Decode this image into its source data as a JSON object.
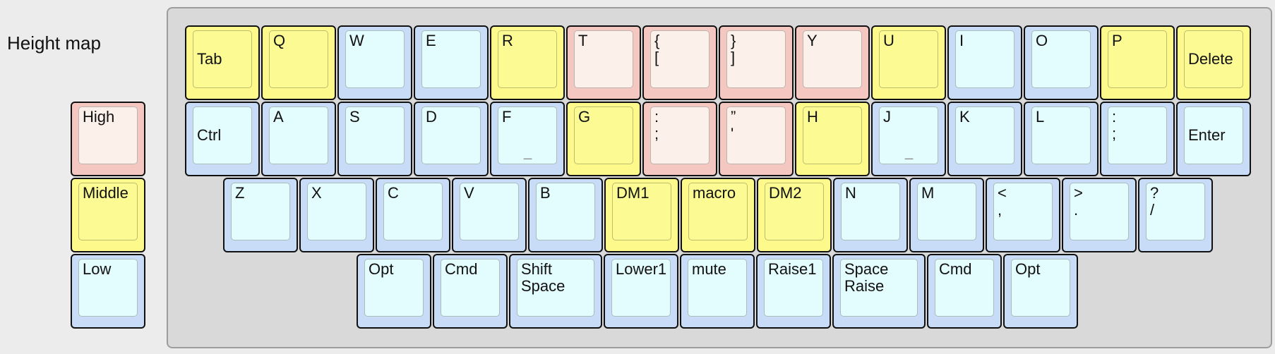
{
  "title": "Height map",
  "colors": {
    "high_outer": "#f4c7c0",
    "high_inner": "#fbf1ea",
    "middle_outer": "#fdfa8b",
    "middle_inner": "#fcfa93",
    "low_outer": "#c8dcf8",
    "low_inner": "#e3fcfd",
    "board": "#d9d9d9"
  },
  "legend": [
    {
      "label": "High",
      "level": "high"
    },
    {
      "label": "Middle",
      "level": "middle"
    },
    {
      "label": "Low",
      "level": "low"
    }
  ],
  "rows": [
    [
      {
        "label": "Tab",
        "level": "middle",
        "v": "mid"
      },
      {
        "label": "Q",
        "level": "middle"
      },
      {
        "label": "W",
        "level": "low"
      },
      {
        "label": "E",
        "level": "low"
      },
      {
        "label": "R",
        "level": "middle"
      },
      {
        "label": "T",
        "level": "high"
      },
      {
        "label": "{\n[",
        "level": "high"
      },
      {
        "label": "}\n]",
        "level": "high"
      },
      {
        "label": "Y",
        "level": "high"
      },
      {
        "label": "U",
        "level": "middle"
      },
      {
        "label": "I",
        "level": "low"
      },
      {
        "label": "O",
        "level": "low"
      },
      {
        "label": "P",
        "level": "middle"
      },
      {
        "label": "Delete",
        "level": "middle",
        "v": "mid"
      }
    ],
    [
      {
        "label": "Ctrl",
        "level": "low",
        "v": "mid"
      },
      {
        "label": "A",
        "level": "low"
      },
      {
        "label": "S",
        "level": "low"
      },
      {
        "label": "D",
        "level": "low"
      },
      {
        "label": "F",
        "level": "low",
        "sub": "_"
      },
      {
        "label": "G",
        "level": "middle"
      },
      {
        "label": ":\n;",
        "level": "high"
      },
      {
        "label": "”\n'",
        "level": "high"
      },
      {
        "label": "H",
        "level": "middle"
      },
      {
        "label": "J",
        "level": "low",
        "sub": "_"
      },
      {
        "label": "K",
        "level": "low"
      },
      {
        "label": "L",
        "level": "low"
      },
      {
        "label": ":\n;",
        "level": "low"
      },
      {
        "label": "Enter",
        "level": "low",
        "v": "mid"
      }
    ],
    [
      {
        "label": "Z",
        "level": "low"
      },
      {
        "label": "X",
        "level": "low"
      },
      {
        "label": "C",
        "level": "low"
      },
      {
        "label": "V",
        "level": "low"
      },
      {
        "label": "B",
        "level": "low"
      },
      {
        "label": "DM1",
        "level": "middle"
      },
      {
        "label": "macro",
        "level": "middle"
      },
      {
        "label": "DM2",
        "level": "middle"
      },
      {
        "label": "N",
        "level": "low"
      },
      {
        "label": "M",
        "level": "low"
      },
      {
        "label": "<\n,",
        "level": "low"
      },
      {
        "label": ">\n.",
        "level": "low"
      },
      {
        "label": "?\n/",
        "level": "low"
      }
    ],
    [
      {
        "label": "Opt",
        "level": "low"
      },
      {
        "label": "Cmd",
        "level": "low"
      },
      {
        "label": "Shift\nSpace",
        "level": "low",
        "wide": true
      },
      {
        "label": "Lower1",
        "level": "low"
      },
      {
        "label": "mute",
        "level": "low"
      },
      {
        "label": "Raise1",
        "level": "low"
      },
      {
        "label": "Space\nRaise",
        "level": "low",
        "wide": true
      },
      {
        "label": "Cmd",
        "level": "low"
      },
      {
        "label": "Opt",
        "level": "low"
      }
    ]
  ]
}
